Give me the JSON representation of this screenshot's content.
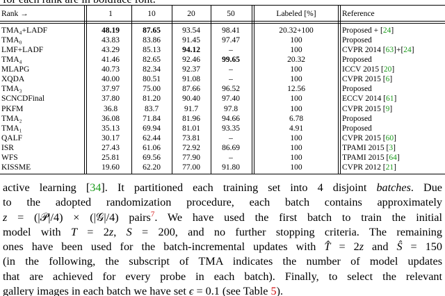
{
  "caption_tail": "for each rank are in boldface font.",
  "table": {
    "header": [
      "Rank →",
      "1",
      "10",
      "20",
      "50",
      "Labeled [%]",
      "Reference"
    ],
    "rows": [
      {
        "method": "TMA₄+LADF",
        "ranks": [
          "48.19",
          "87.65",
          "93.54",
          "98.41"
        ],
        "labeled": "20.32+100",
        "reference": [
          "Proposed + [",
          "24",
          "]"
        ],
        "bold": [
          0,
          1
        ]
      },
      {
        "method": "TMA₀",
        "ranks": [
          "43.83",
          "83.86",
          "91.45",
          "97.47"
        ],
        "labeled": "100",
        "reference": [
          "Proposed"
        ],
        "bold": []
      },
      {
        "method": "LMF+LADF",
        "ranks": [
          "43.29",
          "85.13",
          "94.12",
          "–"
        ],
        "labeled": "100",
        "reference": [
          "CVPR 2014 [",
          "63",
          "]+[",
          "24",
          "]"
        ],
        "bold": [
          2
        ]
      },
      {
        "method": "TMA₄",
        "ranks": [
          "41.46",
          "82.65",
          "92.46",
          "99.65"
        ],
        "labeled": "20.32",
        "reference": [
          "Proposed"
        ],
        "bold": [
          3
        ]
      },
      {
        "method": "MLAPG",
        "ranks": [
          "40.73",
          "82.34",
          "92.37",
          "–"
        ],
        "labeled": "100",
        "reference": [
          "ICCV 2015 [",
          "20",
          "]"
        ],
        "bold": []
      },
      {
        "method": "XQDA",
        "ranks": [
          "40.00",
          "80.51",
          "91.08",
          "–"
        ],
        "labeled": "100",
        "reference": [
          "CVPR 2015 [",
          "6",
          "]"
        ],
        "bold": []
      },
      {
        "method": "TMA₃",
        "ranks": [
          "37.97",
          "75.00",
          "87.66",
          "96.52"
        ],
        "labeled": "12.56",
        "reference": [
          "Proposed"
        ],
        "bold": []
      },
      {
        "method": "SCNCDFinal",
        "ranks": [
          "37.80",
          "81.20",
          "90.40",
          "97.40"
        ],
        "labeled": "100",
        "reference": [
          "ECCV 2014 [",
          "61",
          "]"
        ],
        "bold": []
      },
      {
        "method": "PKFM",
        "ranks": [
          "36.8",
          "83.7",
          "91.7",
          "97.8"
        ],
        "labeled": "100",
        "reference": [
          "CVPR 2015 [",
          "9",
          "]"
        ],
        "bold": []
      },
      {
        "method": "TMA₂",
        "ranks": [
          "36.08",
          "71.84",
          "81.96",
          "94.66"
        ],
        "labeled": "6.78",
        "reference": [
          "Proposed"
        ],
        "bold": []
      },
      {
        "method": "TMA₁",
        "ranks": [
          "35.13",
          "69.94",
          "81.01",
          "93.35"
        ],
        "labeled": "4.91",
        "reference": [
          "Proposed"
        ],
        "bold": []
      },
      {
        "method": "QALF",
        "ranks": [
          "30.17",
          "62.44",
          "73.81",
          "–"
        ],
        "labeled": "100",
        "reference": [
          "CVPR 2015 [",
          "60",
          "]"
        ],
        "bold": []
      },
      {
        "method": "ISR",
        "ranks": [
          "27.43",
          "61.06",
          "72.92",
          "86.69"
        ],
        "labeled": "100",
        "reference": [
          "TPAMI 2015 [",
          "3",
          "]"
        ],
        "bold": []
      },
      {
        "method": "WFS",
        "ranks": [
          "25.81",
          "69.56",
          "77.90",
          "–"
        ],
        "labeled": "100",
        "reference": [
          "TPAMI 2015 [",
          "64",
          "]"
        ],
        "bold": []
      },
      {
        "method": "KISSME",
        "ranks": [
          "19.60",
          "62.20",
          "77.00",
          "91.80"
        ],
        "labeled": "100",
        "reference": [
          "CVPR 2012 [",
          "21",
          "]"
        ],
        "bold": []
      }
    ]
  },
  "paragraph": [
    [
      "active learning [",
      {
        "text": "34",
        "kind": "cite"
      },
      "]. It partitioned each training set into 4 disjoint ",
      {
        "text": "batches",
        "kind": "em"
      },
      ". Due"
    ],
    [
      "to the adopted randomization procedure, each batch contains approximately"
    ],
    [
      {
        "text": "z",
        "kind": "math"
      },
      " = (|𝒫|/4) × (|𝒢|/4) pairs",
      {
        "text": "7",
        "kind": "note"
      },
      ". We have used the first batch to train the initial"
    ],
    [
      "model with ",
      {
        "text": "T",
        "kind": "math"
      },
      " = 2",
      {
        "text": "z",
        "kind": "math"
      },
      ", ",
      {
        "text": "S",
        "kind": "math"
      },
      " = 200, and no further stopping criteria. The remaining"
    ],
    [
      "ones have been used for the batch-incremental updates with ",
      {
        "text": "T̂",
        "kind": "math"
      },
      " = 2",
      {
        "text": "z",
        "kind": "math"
      },
      " and ",
      {
        "text": "Ŝ",
        "kind": "math"
      },
      " = 150"
    ],
    [
      "(in the following, the subscript of TMA indicates the number of model updates"
    ],
    [
      "that are achieved for every probe in each batch). Finally, to select the relevant"
    ],
    [
      "gallery images in each batch we have set ",
      {
        "text": "ϵ",
        "kind": "math"
      },
      " = 0.1 (see Table ",
      {
        "text": "5",
        "kind": "ref"
      },
      ")."
    ]
  ]
}
